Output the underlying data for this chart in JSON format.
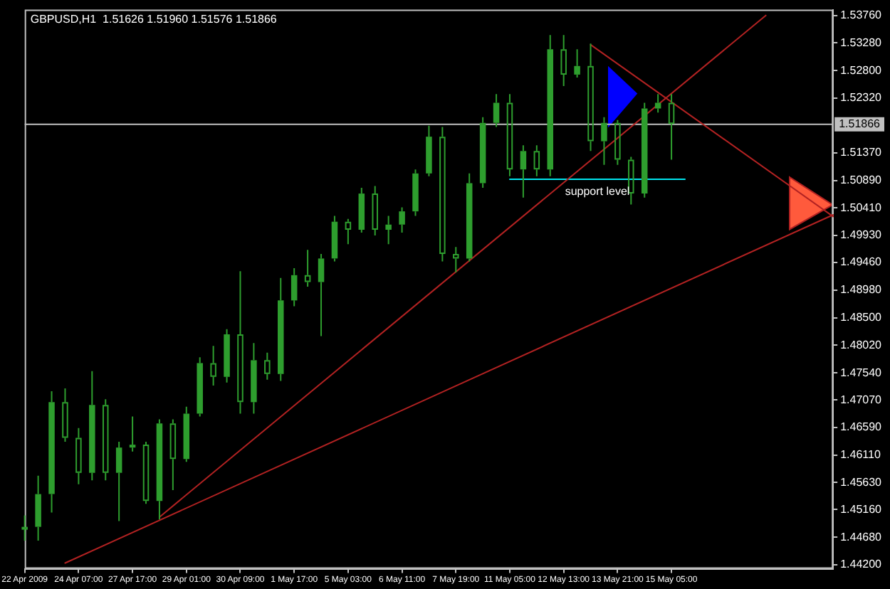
{
  "chart_data": {
    "type": "candlestick",
    "title": "GBPUSD,H1  1.51626 1.51960 1.51576 1.51866",
    "color": "#2e9e2e",
    "categories": [
      "22 Apr 2009",
      null,
      null,
      null,
      "24 Apr 07:00",
      null,
      null,
      null,
      "27 Apr 17:00",
      null,
      null,
      null,
      "29 Apr 01:00",
      null,
      null,
      null,
      "30 Apr 09:00",
      null,
      null,
      null,
      "1 May 17:00",
      null,
      null,
      null,
      "5 May 03:00",
      null,
      null,
      null,
      "6 May 11:00",
      null,
      null,
      null,
      "7 May 19:00",
      null,
      null,
      null,
      "11 May 05:00",
      null,
      null,
      null,
      "12 May 13:00",
      null,
      null,
      null,
      "13 May 21:00",
      null,
      null,
      null,
      "15 May 05:00",
      null,
      null,
      null,
      null,
      null,
      null,
      null,
      null,
      null,
      null,
      null,
      null
    ],
    "ohlc": [
      [
        1.4481,
        1.4506,
        1.4462,
        1.4486
      ],
      [
        1.4486,
        1.4575,
        1.4462,
        1.4543
      ],
      [
        1.4543,
        1.4722,
        1.4511,
        1.4703
      ],
      [
        1.4703,
        1.4727,
        1.4634,
        1.4641
      ],
      [
        1.4641,
        1.4658,
        1.456,
        1.458
      ],
      [
        1.458,
        1.4757,
        1.4567,
        1.4698
      ],
      [
        1.4698,
        1.4708,
        1.4567,
        1.458
      ],
      [
        1.458,
        1.4634,
        1.4496,
        1.4624
      ],
      [
        1.4624,
        1.4678,
        1.4617,
        1.4629
      ],
      [
        1.4629,
        1.4634,
        1.4526,
        1.4531
      ],
      [
        1.4531,
        1.4673,
        1.4499,
        1.4666
      ],
      [
        1.4666,
        1.4673,
        1.455,
        1.4604
      ],
      [
        1.4604,
        1.4695,
        1.4599,
        1.4683
      ],
      [
        1.4683,
        1.4781,
        1.4678,
        1.4771
      ],
      [
        1.4771,
        1.4801,
        1.4732,
        1.4747
      ],
      [
        1.4747,
        1.483,
        1.4737,
        1.4821
      ],
      [
        1.4821,
        1.4931,
        1.4683,
        1.4703
      ],
      [
        1.4703,
        1.4806,
        1.4683,
        1.4776
      ],
      [
        1.4776,
        1.4789,
        1.4742,
        1.4752
      ],
      [
        1.4752,
        1.4919,
        1.474,
        1.488
      ],
      [
        1.488,
        1.4936,
        1.487,
        1.4924
      ],
      [
        1.4924,
        1.4968,
        1.4904,
        1.4912
      ],
      [
        1.4912,
        1.4961,
        1.4818,
        1.4953
      ],
      [
        1.4953,
        1.5027,
        1.4948,
        1.5017
      ],
      [
        1.5017,
        1.5022,
        1.4978,
        1.5003
      ],
      [
        1.5003,
        1.5076,
        1.4998,
        1.5066
      ],
      [
        1.5066,
        1.5079,
        1.4993,
        1.5003
      ],
      [
        1.5003,
        1.5027,
        1.4978,
        1.5012
      ],
      [
        1.5012,
        1.5042,
        1.4998,
        1.5035
      ],
      [
        1.5035,
        1.5108,
        1.5027,
        1.5101
      ],
      [
        1.5101,
        1.5184,
        1.5096,
        1.5165
      ],
      [
        1.5165,
        1.5182,
        1.4948,
        1.4961
      ],
      [
        1.4961,
        1.4973,
        1.4929,
        1.4953
      ],
      [
        1.4953,
        1.5101,
        1.4948,
        1.5084
      ],
      [
        1.5084,
        1.5199,
        1.5076,
        1.5189
      ],
      [
        1.5189,
        1.5239,
        1.5182,
        1.5224
      ],
      [
        1.5224,
        1.5239,
        1.5096,
        1.5108
      ],
      [
        1.5108,
        1.515,
        1.5059,
        1.514
      ],
      [
        1.514,
        1.515,
        1.5096,
        1.5108
      ],
      [
        1.5108,
        1.5342,
        1.5096,
        1.5317
      ],
      [
        1.5317,
        1.5342,
        1.5253,
        1.5273
      ],
      [
        1.5273,
        1.5317,
        1.5268,
        1.5288
      ],
      [
        1.5288,
        1.5327,
        1.514,
        1.5157
      ],
      [
        1.5157,
        1.5199,
        1.5116,
        1.5189
      ],
      [
        1.5189,
        1.5194,
        1.5116,
        1.5125
      ],
      [
        1.5125,
        1.513,
        1.5047,
        1.5066
      ],
      [
        1.5066,
        1.5224,
        1.5059,
        1.5214
      ],
      [
        1.5214,
        1.5239,
        1.5207,
        1.5224
      ],
      [
        1.5224,
        1.5239,
        1.5125,
        1.5187
      ],
      null,
      null,
      null,
      null,
      null,
      null,
      null,
      null,
      null,
      null,
      null,
      null
    ],
    "series": [
      {
        "type": "line",
        "color": "#b22222",
        "values": [
          null,
          null,
          null,
          1.4423,
          null,
          null,
          null,
          null,
          null,
          null,
          null,
          null,
          null,
          null,
          null,
          null,
          null,
          null,
          null,
          null,
          null,
          null,
          null,
          null,
          null,
          null,
          null,
          null,
          null,
          null,
          null,
          null,
          null,
          null,
          null,
          null,
          null,
          null,
          null,
          null,
          null,
          null,
          null,
          null,
          null,
          null,
          null,
          null,
          null,
          null,
          null,
          null,
          null,
          null,
          null,
          null,
          null,
          null,
          null,
          null,
          1.5029
        ]
      },
      {
        "type": "line",
        "color": "#b22222",
        "values": [
          null,
          null,
          null,
          null,
          null,
          null,
          null,
          null,
          null,
          null,
          1.4503,
          null,
          null,
          null,
          null,
          null,
          null,
          null,
          null,
          null,
          null,
          null,
          null,
          null,
          null,
          null,
          null,
          null,
          null,
          null,
          null,
          null,
          null,
          null,
          null,
          null,
          null,
          null,
          null,
          null,
          null,
          null,
          null,
          null,
          null,
          null,
          null,
          null,
          null,
          null,
          null,
          null,
          null,
          null,
          null,
          1.5376,
          null,
          null,
          null,
          null,
          null
        ]
      },
      {
        "type": "line",
        "color": "#b22222",
        "values": [
          null,
          null,
          null,
          null,
          null,
          null,
          null,
          null,
          null,
          null,
          null,
          null,
          null,
          null,
          null,
          null,
          null,
          null,
          null,
          null,
          null,
          null,
          null,
          null,
          null,
          null,
          null,
          null,
          null,
          null,
          null,
          null,
          null,
          null,
          null,
          null,
          null,
          null,
          null,
          null,
          null,
          null,
          1.5325,
          null,
          null,
          null,
          null,
          null,
          null,
          null,
          null,
          null,
          null,
          null,
          null,
          null,
          null,
          null,
          null,
          null,
          1.5026
        ]
      },
      {
        "type": "line",
        "name": "support level",
        "color": "#00e5ee",
        "values": [
          null,
          null,
          null,
          null,
          null,
          null,
          null,
          null,
          null,
          null,
          null,
          null,
          null,
          null,
          null,
          null,
          null,
          null,
          null,
          null,
          null,
          null,
          null,
          null,
          null,
          null,
          null,
          null,
          null,
          null,
          null,
          null,
          null,
          null,
          null,
          null,
          1.5091,
          null,
          null,
          null,
          null,
          null,
          null,
          null,
          null,
          null,
          null,
          null,
          null,
          1.5091,
          null,
          null,
          null,
          null,
          null,
          null,
          null,
          null,
          null,
          null,
          null
        ]
      }
    ],
    "ylim": [
      1.4413,
      1.5386
    ],
    "yticks": [
      {
        "value": 1.5376,
        "label": "1.53760"
      },
      {
        "value": 1.5328,
        "label": "1.53280"
      },
      {
        "value": 1.528,
        "label": "1.52800"
      },
      {
        "value": 1.5232,
        "label": "1.52320"
      },
      {
        "value": 1.5137,
        "label": "1.51370"
      },
      {
        "value": 1.5089,
        "label": "1.50890"
      },
      {
        "value": 1.5041,
        "label": "1.50410"
      },
      {
        "value": 1.4993,
        "label": "1.49930"
      },
      {
        "value": 1.4946,
        "label": "1.49460"
      },
      {
        "value": 1.4898,
        "label": "1.48980"
      },
      {
        "value": 1.485,
        "label": "1.48500"
      },
      {
        "value": 1.4802,
        "label": "1.48020"
      },
      {
        "value": 1.4754,
        "label": "1.47540"
      },
      {
        "value": 1.4707,
        "label": "1.47070"
      },
      {
        "value": 1.4659,
        "label": "1.46590"
      },
      {
        "value": 1.4611,
        "label": "1.46110"
      },
      {
        "value": 1.4563,
        "label": "1.45630"
      },
      {
        "value": 1.4516,
        "label": "1.45160"
      },
      {
        "value": 1.4468,
        "label": "1.44680"
      },
      {
        "value": 1.442,
        "label": "1.44200"
      }
    ],
    "ref_lines": [
      {
        "axis": "y",
        "value": 1.51866,
        "label": "1.51866",
        "color": "#c0c0c0"
      }
    ]
  }
}
